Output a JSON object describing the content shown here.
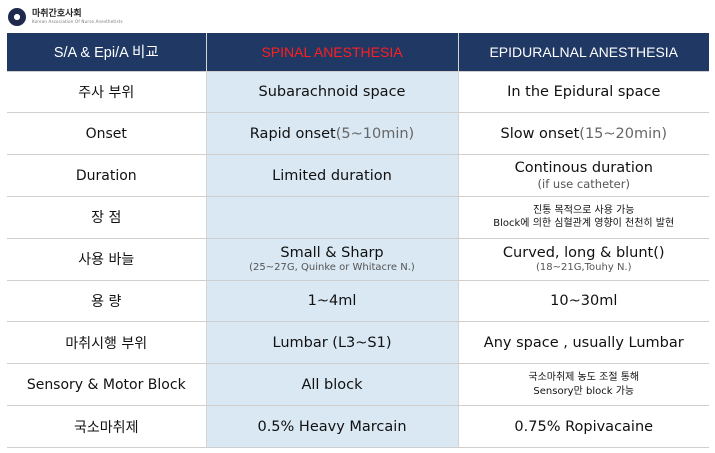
{
  "header": {
    "org_name": "마취간호사회",
    "org_sub": "Korean Association Of Nurse Anesthetists"
  },
  "table": {
    "columns": [
      "S/A & Epi/A 비교",
      "SPINAL ANESTHESIA",
      "EPIDURALNAL ANESTHESIA"
    ],
    "rows": [
      {
        "label": "주사 부위",
        "spinal": "Subarachnoid space",
        "epidural": "In the Epidural space"
      },
      {
        "label": "Onset",
        "spinal": "Rapid onset",
        "spinal_extra": "(5~10min)",
        "epidural": "Slow onset",
        "epidural_extra": "(15~20min)"
      },
      {
        "label": "Duration",
        "spinal": "Limited duration",
        "epidural": "Continous duration",
        "epidural_note": "(if use catheter)"
      },
      {
        "label": "장 점",
        "spinal": "",
        "epidural_line1": "진통 목적으로 사용 가능",
        "epidural_line2": "Block에 의한 심혈관계 영향이 천천히 발현"
      },
      {
        "label": "사용 바늘",
        "spinal": "Small & Sharp",
        "spinal_note": "(25~27G, Quinke or Whitacre N.)",
        "epidural": "Curved, long & blunt()",
        "epidural_note": "(18~21G,Touhy N.)"
      },
      {
        "label": "용 량",
        "spinal": "1~4ml",
        "epidural": "10~30ml"
      },
      {
        "label": "마취시행 부위",
        "spinal": "Lumbar (L3~S1)",
        "epidural": "Any space , usually Lumbar"
      },
      {
        "label": "Sensory & Motor Block",
        "spinal": "All block",
        "epidural_line1": "국소마취제 농도 조절 통해",
        "epidural_line2": "Sensory만 block 가능"
      },
      {
        "label": "국소마취제",
        "spinal": "0.5% Heavy Marcain",
        "epidural": "0.75% Ropivacaine"
      }
    ]
  },
  "colors": {
    "header_bg": "#1f3864",
    "spinal_header_text": "#ff1f1f",
    "middle_column_bg": "#d9e8f3"
  },
  "icons": {
    "logo": "association-seal-icon"
  }
}
